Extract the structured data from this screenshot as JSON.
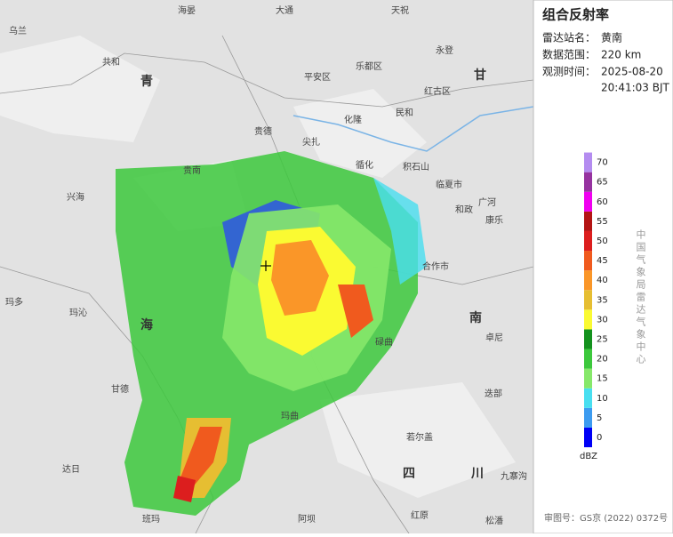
{
  "title": "组合反射率",
  "info": [
    {
      "label": "雷达站名：",
      "value": "黄南"
    },
    {
      "label": "数据范围：",
      "value": "220 km"
    },
    {
      "label": "观测时间：",
      "value": "2025-08-20",
      "value2": "20:41:03 BJT"
    }
  ],
  "legend": {
    "ticks": [
      0,
      5,
      10,
      15,
      20,
      25,
      30,
      35,
      40,
      45,
      50,
      55,
      60,
      65,
      70
    ],
    "colors": [
      "#0000f6",
      "#3c9bf0",
      "#48dff0",
      "#86e86a",
      "#3cc83c",
      "#14921e",
      "#fafa32",
      "#e6be32",
      "#fa9628",
      "#f05a1e",
      "#dc1e1e",
      "#b41414",
      "#f000f0",
      "#9632a0",
      "#b48cf0"
    ],
    "unit": "dBZ"
  },
  "credit": "中国气象局雷达气象中心",
  "approval": "审图号：GS京 (2022) 0372号",
  "map": {
    "places": [
      "乌兰",
      "海晏",
      "大通",
      "天祝",
      "共和",
      "青",
      "平安区",
      "乐都区",
      "永登",
      "红古区",
      "民和",
      "化隆",
      "贵德",
      "尖扎",
      "循化",
      "积石山",
      "临夏市",
      "贵南",
      "兴海",
      "和政",
      "广河",
      "康乐",
      "合作市",
      "玛多",
      "玛沁",
      "海",
      "南",
      "碌曲",
      "卓尼",
      "甘德",
      "迭部",
      "玛曲",
      "若尔盖",
      "达日",
      "四",
      "川",
      "九寨沟",
      "班玛",
      "阿坝",
      "红原",
      "松潘",
      "甘"
    ]
  }
}
